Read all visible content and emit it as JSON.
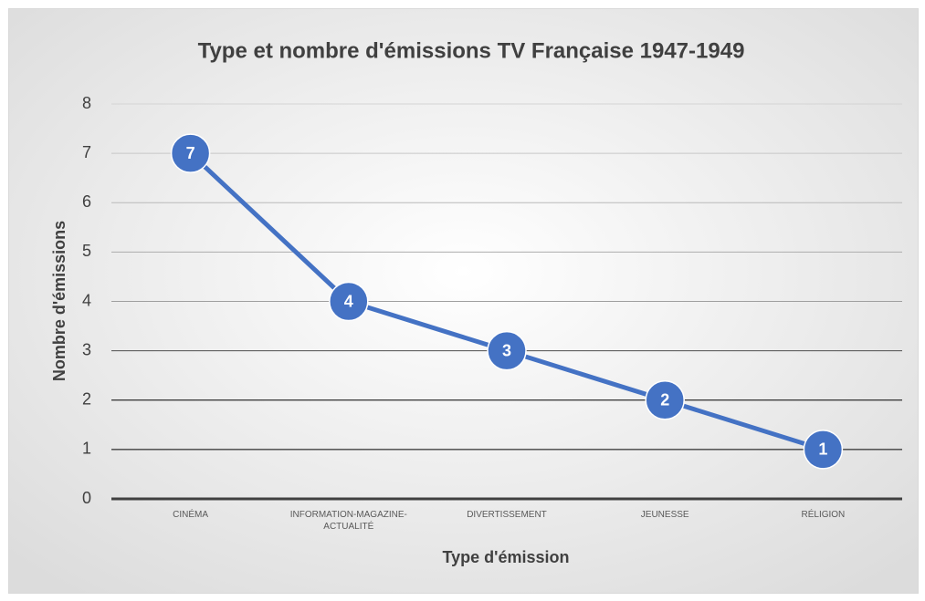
{
  "chart_data": {
    "type": "line",
    "title": "Type et nombre d'émissions TV Française 1947-1949",
    "x_label": "Type d'émission",
    "y_label": "Nombre d'émissions",
    "categories": [
      "CINÉMA",
      "INFORMATION-MAGAZINE-ACTUALITÉ",
      "DIVERTISSEMENT",
      "JEUNESSE",
      "RÉLIGION"
    ],
    "values": [
      7,
      4,
      3,
      2,
      1
    ],
    "color": "#4472c4",
    "ylim": [
      0,
      8
    ],
    "yticks": [
      0,
      1,
      2,
      3,
      4,
      5,
      6,
      7,
      8
    ],
    "grid": true
  }
}
